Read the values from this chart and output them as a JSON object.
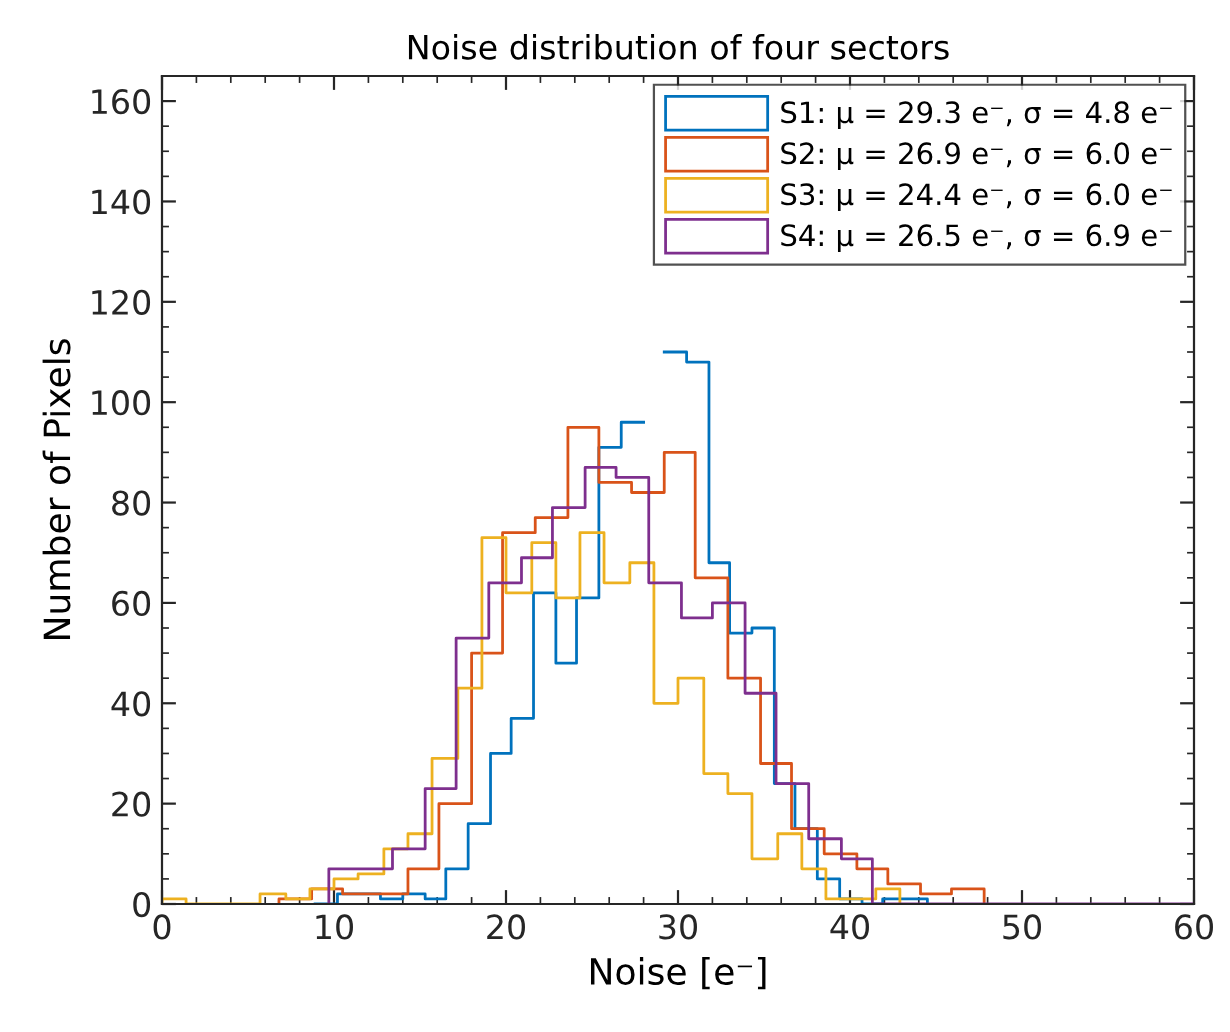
{
  "chart_data": {
    "type": "step",
    "title": "Noise distribution of four sectors",
    "xlabel": "Noise [e⁻]",
    "ylabel": "Number of Pixels",
    "xlim": [
      0,
      60
    ],
    "xticks": [
      0,
      10,
      20,
      30,
      40,
      50,
      60
    ],
    "ylim": [
      0,
      165
    ],
    "yticks": [
      0,
      20,
      40,
      60,
      80,
      100,
      120,
      140,
      160
    ],
    "grid": false,
    "legend": "top right",
    "series": [
      {
        "name": "S1: μ = 29.3 e⁻, σ = 4.8 e⁻",
        "color": "#0072bd",
        "x": [
          8.9,
          8.9,
          10.2,
          11.4,
          12.7,
          14.0,
          15.3,
          16.5,
          17.8,
          19.1,
          20.3,
          21.6,
          22.9,
          24.1,
          25.4,
          26.7,
          28.0,
          29.2,
          30.5,
          31.8,
          33.0,
          34.3,
          35.6,
          36.8,
          38.1,
          39.4,
          40.7,
          41.9,
          43.2,
          44.5
        ],
        "values": [
          0,
          0,
          2,
          2,
          1,
          2,
          1,
          7,
          16,
          30,
          37,
          62,
          48,
          61,
          91,
          96,
          null,
          110,
          108,
          68,
          54,
          55,
          24,
          15,
          5,
          1,
          0,
          1,
          1,
          0
        ]
      },
      {
        "name": "S2: μ = 26.9 e⁻, σ = 6.0 e⁻",
        "color": "#d95319",
        "x": [
          6.8,
          6.8,
          8.7,
          10.5,
          12.4,
          14.3,
          16.1,
          18.0,
          19.8,
          21.7,
          23.6,
          25.4,
          27.3,
          29.2,
          31.0,
          32.9,
          34.8,
          36.6,
          38.5,
          40.4,
          42.2,
          44.1,
          45.9,
          47.8
        ],
        "values": [
          0,
          1,
          3,
          2,
          2,
          7,
          20,
          50,
          74,
          77,
          95,
          84,
          82,
          90,
          65,
          45,
          28,
          15,
          10,
          7,
          4,
          2,
          3,
          0
        ]
      },
      {
        "name": "S3: μ = 24.4 e⁻, σ = 6.0 e⁻",
        "color": "#edb120",
        "x": [
          0,
          0,
          1.4,
          2.9,
          4.3,
          5.7,
          7.2,
          8.6,
          10.0,
          11.4,
          12.9,
          14.3,
          15.7,
          17.2,
          18.6,
          20.0,
          21.5,
          22.9,
          24.3,
          25.7,
          27.2,
          28.6,
          30.0,
          31.5,
          32.9,
          34.3,
          35.8,
          37.2,
          38.6,
          40.0,
          41.5,
          42.9
        ],
        "values": [
          0,
          1,
          0,
          0,
          0,
          2,
          1,
          3,
          5,
          6,
          11,
          14,
          29,
          43,
          73,
          62,
          72,
          61,
          74,
          64,
          68,
          40,
          45,
          26,
          22,
          9,
          14,
          7,
          1,
          1,
          3,
          0
        ]
      },
      {
        "name": "S4: μ = 26.5 e⁻, σ = 6.9 e⁻",
        "color": "#7e2f8e",
        "x": [
          9.7,
          9.7,
          11.6,
          13.4,
          15.3,
          17.1,
          19.0,
          20.9,
          22.7,
          24.6,
          26.4,
          28.3,
          30.2,
          32.0,
          33.9,
          35.7,
          37.6,
          39.5,
          41.3,
          60
        ],
        "values": [
          0,
          7,
          7,
          11,
          23,
          53,
          64,
          69,
          79,
          87,
          85,
          64,
          57,
          60,
          42,
          24,
          13,
          9,
          0,
          0
        ]
      }
    ]
  }
}
